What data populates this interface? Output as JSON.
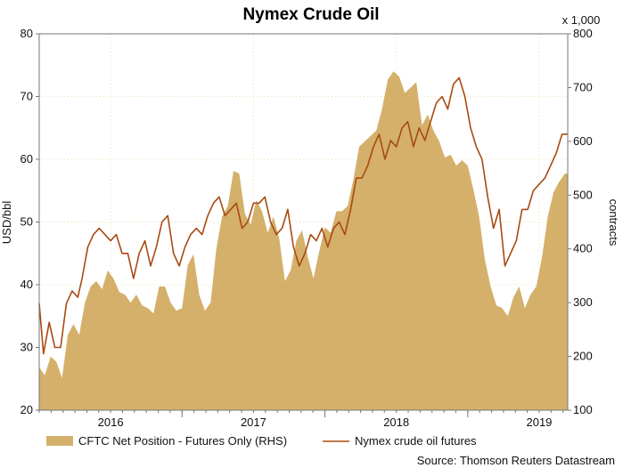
{
  "chart_data": {
    "type": "area",
    "title": "Nymex Crude Oil",
    "left_axis_label": "USD/bbl",
    "right_axis_label": "contracts",
    "right_axis_multiplier": "x 1,000",
    "left_ylim": [
      20,
      80
    ],
    "right_ylim": [
      100,
      800
    ],
    "left_ticks": [
      "20",
      "30",
      "40",
      "50",
      "60",
      "70",
      "80"
    ],
    "right_ticks": [
      "100",
      "200",
      "300",
      "400",
      "500",
      "600",
      "700",
      "800"
    ],
    "x_range": [
      2015.5,
      2019.2
    ],
    "x_ticks": [
      {
        "label": "2016",
        "x": 2016.0
      },
      {
        "label": "2017",
        "x": 2017.0
      },
      {
        "label": "2018",
        "x": 2018.0
      },
      {
        "label": "2019",
        "x": 2019.0
      }
    ],
    "grid": true,
    "legend_placement": "bottom",
    "series": [
      {
        "name": "CFTC Net Position - Futures Only (RHS)",
        "type": "area",
        "axis": "right",
        "color": "#d4b06a",
        "points": [
          [
            2015.5,
            180
          ],
          [
            2015.54,
            165
          ],
          [
            2015.58,
            200
          ],
          [
            2015.62,
            190
          ],
          [
            2015.66,
            160
          ],
          [
            2015.7,
            240
          ],
          [
            2015.74,
            260
          ],
          [
            2015.78,
            240
          ],
          [
            2015.82,
            300
          ],
          [
            2015.86,
            330
          ],
          [
            2015.9,
            340
          ],
          [
            2015.94,
            325
          ],
          [
            2015.98,
            360
          ],
          [
            2016.02,
            345
          ],
          [
            2016.06,
            320
          ],
          [
            2016.1,
            315
          ],
          [
            2016.14,
            300
          ],
          [
            2016.18,
            315
          ],
          [
            2016.22,
            295
          ],
          [
            2016.26,
            290
          ],
          [
            2016.3,
            280
          ],
          [
            2016.34,
            330
          ],
          [
            2016.38,
            330
          ],
          [
            2016.42,
            300
          ],
          [
            2016.46,
            285
          ],
          [
            2016.5,
            290
          ],
          [
            2016.54,
            370
          ],
          [
            2016.58,
            390
          ],
          [
            2016.62,
            315
          ],
          [
            2016.66,
            285
          ],
          [
            2016.7,
            300
          ],
          [
            2016.74,
            400
          ],
          [
            2016.78,
            460
          ],
          [
            2016.82,
            480
          ],
          [
            2016.86,
            545
          ],
          [
            2016.9,
            540
          ],
          [
            2016.94,
            465
          ],
          [
            2016.98,
            445
          ],
          [
            2017.02,
            490
          ],
          [
            2017.06,
            470
          ],
          [
            2017.1,
            430
          ],
          [
            2017.14,
            460
          ],
          [
            2017.18,
            420
          ],
          [
            2017.22,
            340
          ],
          [
            2017.26,
            360
          ],
          [
            2017.3,
            415
          ],
          [
            2017.34,
            435
          ],
          [
            2017.38,
            385
          ],
          [
            2017.42,
            345
          ],
          [
            2017.46,
            395
          ],
          [
            2017.5,
            440
          ],
          [
            2017.54,
            430
          ],
          [
            2017.58,
            470
          ],
          [
            2017.62,
            470
          ],
          [
            2017.66,
            480
          ],
          [
            2017.7,
            530
          ],
          [
            2017.74,
            590
          ],
          [
            2017.78,
            600
          ],
          [
            2017.82,
            610
          ],
          [
            2017.86,
            620
          ],
          [
            2017.9,
            660
          ],
          [
            2017.94,
            715
          ],
          [
            2017.98,
            730
          ],
          [
            2018.02,
            720
          ],
          [
            2018.06,
            690
          ],
          [
            2018.1,
            700
          ],
          [
            2018.14,
            710
          ],
          [
            2018.18,
            630
          ],
          [
            2018.22,
            650
          ],
          [
            2018.26,
            620
          ],
          [
            2018.3,
            600
          ],
          [
            2018.34,
            570
          ],
          [
            2018.38,
            575
          ],
          [
            2018.42,
            555
          ],
          [
            2018.46,
            565
          ],
          [
            2018.5,
            555
          ],
          [
            2018.54,
            510
          ],
          [
            2018.58,
            460
          ],
          [
            2018.62,
            380
          ],
          [
            2018.66,
            330
          ],
          [
            2018.7,
            295
          ],
          [
            2018.74,
            290
          ],
          [
            2018.78,
            275
          ],
          [
            2018.82,
            310
          ],
          [
            2018.86,
            330
          ],
          [
            2018.9,
            290
          ],
          [
            2018.94,
            315
          ],
          [
            2018.98,
            330
          ],
          [
            2019.02,
            385
          ],
          [
            2019.06,
            460
          ],
          [
            2019.1,
            505
          ],
          [
            2019.14,
            525
          ],
          [
            2019.18,
            540
          ],
          [
            2019.2,
            540
          ]
        ]
      },
      {
        "name": "Nymex crude oil futures",
        "type": "line",
        "axis": "left",
        "color": "#a84a12",
        "points": [
          [
            2015.5,
            37
          ],
          [
            2015.53,
            29
          ],
          [
            2015.57,
            34
          ],
          [
            2015.61,
            30
          ],
          [
            2015.65,
            30
          ],
          [
            2015.69,
            37
          ],
          [
            2015.73,
            39
          ],
          [
            2015.77,
            38
          ],
          [
            2015.8,
            41
          ],
          [
            2015.84,
            46
          ],
          [
            2015.88,
            48
          ],
          [
            2015.92,
            49
          ],
          [
            2015.96,
            48
          ],
          [
            2016.0,
            47
          ],
          [
            2016.04,
            48
          ],
          [
            2016.08,
            45
          ],
          [
            2016.12,
            45
          ],
          [
            2016.16,
            41
          ],
          [
            2016.2,
            45
          ],
          [
            2016.24,
            47
          ],
          [
            2016.28,
            43
          ],
          [
            2016.32,
            46
          ],
          [
            2016.36,
            50
          ],
          [
            2016.4,
            51
          ],
          [
            2016.44,
            45
          ],
          [
            2016.48,
            43
          ],
          [
            2016.52,
            46
          ],
          [
            2016.56,
            48
          ],
          [
            2016.6,
            49
          ],
          [
            2016.64,
            48
          ],
          [
            2016.68,
            51
          ],
          [
            2016.72,
            53
          ],
          [
            2016.76,
            54
          ],
          [
            2016.8,
            51
          ],
          [
            2016.84,
            52
          ],
          [
            2016.88,
            53
          ],
          [
            2016.92,
            49
          ],
          [
            2016.96,
            50
          ],
          [
            2017.0,
            53
          ],
          [
            2017.04,
            53
          ],
          [
            2017.08,
            54
          ],
          [
            2017.12,
            50
          ],
          [
            2017.16,
            48
          ],
          [
            2017.2,
            49
          ],
          [
            2017.24,
            52
          ],
          [
            2017.28,
            46
          ],
          [
            2017.32,
            43
          ],
          [
            2017.36,
            45
          ],
          [
            2017.4,
            48
          ],
          [
            2017.44,
            47
          ],
          [
            2017.48,
            49
          ],
          [
            2017.52,
            46
          ],
          [
            2017.56,
            49
          ],
          [
            2017.6,
            50
          ],
          [
            2017.64,
            48
          ],
          [
            2017.68,
            52
          ],
          [
            2017.72,
            57
          ],
          [
            2017.76,
            57
          ],
          [
            2017.8,
            59
          ],
          [
            2017.84,
            62
          ],
          [
            2017.88,
            64
          ],
          [
            2017.92,
            60
          ],
          [
            2017.96,
            63
          ],
          [
            2018.0,
            62
          ],
          [
            2018.04,
            65
          ],
          [
            2018.08,
            66
          ],
          [
            2018.12,
            62
          ],
          [
            2018.16,
            65
          ],
          [
            2018.2,
            63
          ],
          [
            2018.24,
            66
          ],
          [
            2018.28,
            69
          ],
          [
            2018.32,
            70
          ],
          [
            2018.36,
            68
          ],
          [
            2018.4,
            72
          ],
          [
            2018.44,
            73
          ],
          [
            2018.48,
            70
          ],
          [
            2018.52,
            65
          ],
          [
            2018.56,
            62
          ],
          [
            2018.6,
            60
          ],
          [
            2018.64,
            54
          ],
          [
            2018.68,
            49
          ],
          [
            2018.72,
            52
          ],
          [
            2018.76,
            43
          ],
          [
            2018.8,
            45
          ],
          [
            2018.84,
            47
          ],
          [
            2018.88,
            52
          ],
          [
            2018.92,
            52
          ],
          [
            2018.96,
            55
          ],
          [
            2019.0,
            56
          ],
          [
            2019.04,
            57
          ],
          [
            2019.08,
            59
          ],
          [
            2019.12,
            61
          ],
          [
            2019.16,
            64
          ],
          [
            2019.2,
            64
          ]
        ]
      }
    ],
    "source": "Source: Thomson Reuters Datastream"
  }
}
